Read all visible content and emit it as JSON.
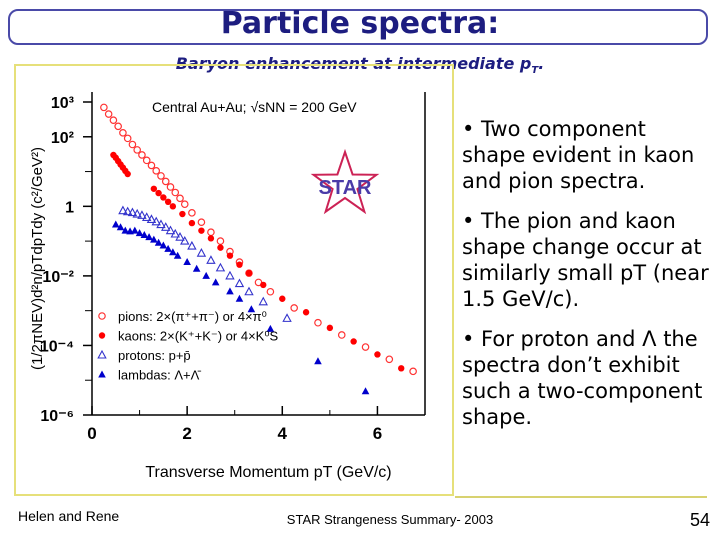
{
  "slide": {
    "title": "Particle spectra:",
    "subtitle": "Baryon enhancement at intermediate pT.",
    "bullets": [
      "• Two component shape evident in kaon and pion spectra.",
      "• The pion and kaon shape change occur at similarly small pT (near 1.5 GeV/c).",
      "• For proton and Λ the spectra don’t exhibit such a two-component shape."
    ],
    "footer_left": "Helen and Rene",
    "footer_center": "STAR Strangeness Summary- 2003",
    "page_number": "54"
  },
  "chart_data": {
    "type": "scatter",
    "title": "Central Au+Au; √sNN = 200 GeV",
    "badge": "STAR",
    "xlabel": "Transverse Momentum pT (GeV/c)",
    "ylabel": "(1/2πNEV)d²n/pTdpTdy (c²/GeV²)",
    "xlim": [
      0,
      7
    ],
    "ylim": [
      1e-06,
      1000
    ],
    "yscale": "log",
    "x_ticks": [
      "0",
      "2",
      "4",
      "6"
    ],
    "y_ticks": [
      "10³",
      "10²",
      "1",
      "10⁻²",
      "10⁻⁴",
      "10⁻⁶"
    ],
    "legend_position": "bottom-left",
    "series": [
      {
        "name": "pions: 2×(π⁺+π⁻) or 4×π⁰",
        "marker": "open-circle",
        "color": "#ff3333",
        "points": [
          [
            0.25,
            700
          ],
          [
            0.35,
            450
          ],
          [
            0.45,
            300
          ],
          [
            0.55,
            200
          ],
          [
            0.65,
            130
          ],
          [
            0.75,
            90
          ],
          [
            0.85,
            60
          ],
          [
            0.95,
            42
          ],
          [
            1.05,
            30
          ],
          [
            1.15,
            21
          ],
          [
            1.25,
            15
          ],
          [
            1.35,
            10.5
          ],
          [
            1.45,
            7.5
          ],
          [
            1.55,
            5.2
          ],
          [
            1.65,
            3.6
          ],
          [
            1.75,
            2.5
          ],
          [
            1.85,
            1.7
          ],
          [
            1.95,
            1.15
          ],
          [
            2.1,
            0.65
          ],
          [
            2.3,
            0.35
          ],
          [
            2.5,
            0.18
          ],
          [
            2.7,
            0.1
          ],
          [
            2.9,
            0.05
          ],
          [
            3.1,
            0.025
          ],
          [
            3.3,
            0.012
          ],
          [
            3.5,
            0.0065
          ],
          [
            3.75,
            0.0035
          ],
          [
            4.25,
            0.0012
          ],
          [
            4.75,
            0.00045
          ],
          [
            5.25,
            0.0002
          ],
          [
            5.75,
            9e-05
          ],
          [
            6.25,
            4e-05
          ],
          [
            6.75,
            1.8e-05
          ]
        ]
      },
      {
        "name": "kaons: 2×(K⁺+K⁻) or 4×K⁰S",
        "marker": "filled-circle",
        "color": "#ff0000",
        "points": [
          [
            0.45,
            30
          ],
          [
            0.5,
            25
          ],
          [
            0.55,
            20
          ],
          [
            0.6,
            16
          ],
          [
            0.65,
            13
          ],
          [
            0.7,
            10.5
          ],
          [
            0.75,
            8.5
          ],
          [
            1.3,
            3.2
          ],
          [
            1.4,
            2.4
          ],
          [
            1.5,
            1.8
          ],
          [
            1.6,
            1.35
          ],
          [
            1.7,
            1.0
          ],
          [
            1.9,
            0.6
          ],
          [
            2.1,
            0.33
          ],
          [
            2.3,
            0.2
          ],
          [
            2.5,
            0.12
          ],
          [
            2.7,
            0.065
          ],
          [
            2.9,
            0.038
          ],
          [
            3.1,
            0.021
          ],
          [
            3.3,
            0.012
          ],
          [
            3.6,
            0.0055
          ],
          [
            4.0,
            0.0022
          ],
          [
            4.5,
            0.0009
          ],
          [
            5.0,
            0.00032
          ],
          [
            5.5,
            0.00013
          ],
          [
            6.0,
            5.5e-05
          ],
          [
            6.5,
            2.2e-05
          ]
        ]
      },
      {
        "name": "protons: p+p̄",
        "marker": "open-triangle",
        "color": "#3333cc",
        "points": [
          [
            0.65,
            0.75
          ],
          [
            0.75,
            0.7
          ],
          [
            0.85,
            0.66
          ],
          [
            0.95,
            0.6
          ],
          [
            1.05,
            0.55
          ],
          [
            1.15,
            0.48
          ],
          [
            1.25,
            0.42
          ],
          [
            1.35,
            0.36
          ],
          [
            1.45,
            0.3
          ],
          [
            1.55,
            0.25
          ],
          [
            1.65,
            0.2
          ],
          [
            1.75,
            0.16
          ],
          [
            1.85,
            0.13
          ],
          [
            1.95,
            0.1
          ],
          [
            2.1,
            0.072
          ],
          [
            2.3,
            0.045
          ],
          [
            2.5,
            0.028
          ],
          [
            2.7,
            0.017
          ],
          [
            2.9,
            0.01
          ],
          [
            3.1,
            0.006
          ],
          [
            3.3,
            0.0035
          ],
          [
            3.6,
            0.0018
          ],
          [
            4.1,
            0.0006
          ]
        ]
      },
      {
        "name": "lambdas: Λ+Λ̄",
        "marker": "filled-triangle",
        "color": "#0000cc",
        "points": [
          [
            0.5,
            0.3
          ],
          [
            0.6,
            0.25
          ],
          [
            0.7,
            0.2
          ],
          [
            0.8,
            0.19
          ],
          [
            0.9,
            0.2
          ],
          [
            1.0,
            0.17
          ],
          [
            1.1,
            0.15
          ],
          [
            1.2,
            0.13
          ],
          [
            1.3,
            0.11
          ],
          [
            1.4,
            0.09
          ],
          [
            1.5,
            0.075
          ],
          [
            1.6,
            0.06
          ],
          [
            1.7,
            0.048
          ],
          [
            1.8,
            0.038
          ],
          [
            2.0,
            0.025
          ],
          [
            2.2,
            0.016
          ],
          [
            2.4,
            0.01
          ],
          [
            2.6,
            0.0065
          ],
          [
            2.9,
            0.0036
          ],
          [
            3.1,
            0.0022
          ],
          [
            3.35,
            0.0011
          ],
          [
            3.75,
            0.0003
          ],
          [
            4.75,
            3.5e-05
          ],
          [
            5.75,
            4.8e-06
          ]
        ]
      }
    ]
  }
}
